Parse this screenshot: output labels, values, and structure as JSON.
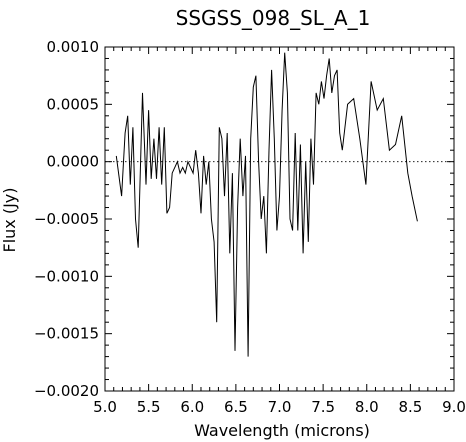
{
  "chart_data": {
    "type": "line",
    "title": "SSGSS_098_SL_A_1",
    "xlabel": "Wavelength (microns)",
    "ylabel": "Flux (Jy)",
    "xlim": [
      5.0,
      9.0
    ],
    "ylim": [
      -0.002,
      0.001
    ],
    "xticks": [
      5.0,
      5.5,
      6.0,
      6.5,
      7.0,
      7.5,
      8.0,
      8.5,
      9.0
    ],
    "xtick_labels": [
      "5.0",
      "5.5",
      "6.0",
      "6.5",
      "7.0",
      "7.5",
      "8.0",
      "8.5",
      "9.0"
    ],
    "yticks": [
      -0.002,
      -0.0015,
      -0.001,
      -0.0005,
      0.0,
      0.0005,
      0.001
    ],
    "ytick_labels": [
      "−0.0020",
      "−0.0015",
      "−0.0010",
      "−0.0005",
      "0.0000",
      "0.0005",
      "0.0010"
    ],
    "reference_line": {
      "y": 0.0,
      "style": "dotted"
    },
    "grid": false,
    "series": [
      {
        "x": [
          5.13,
          5.19,
          5.23,
          5.26,
          5.29,
          5.32,
          5.35,
          5.38,
          5.43,
          5.47,
          5.5,
          5.53,
          5.56,
          5.59,
          5.62,
          5.65,
          5.68,
          5.71,
          5.74,
          5.77,
          5.8,
          5.83,
          5.86,
          5.89,
          5.92,
          5.95,
          5.98,
          6.01,
          6.04,
          6.07,
          6.1,
          6.13,
          6.16,
          6.19,
          6.22,
          6.25,
          6.28,
          6.31,
          6.34,
          6.37,
          6.4,
          6.43,
          6.46,
          6.49,
          6.52,
          6.55,
          6.58,
          6.61,
          6.64,
          6.67,
          6.7,
          6.73,
          6.76,
          6.79,
          6.82,
          6.85,
          6.88,
          6.91,
          6.94,
          6.97,
          7.0,
          7.03,
          7.06,
          7.09,
          7.12,
          7.15,
          7.18,
          7.21,
          7.24,
          7.27,
          7.3,
          7.33,
          7.36,
          7.39,
          7.42,
          7.45,
          7.48,
          7.51,
          7.54,
          7.57,
          7.6,
          7.63,
          7.66,
          7.69,
          7.72,
          7.78,
          7.85,
          7.92,
          7.99,
          8.05,
          8.12,
          8.19,
          8.26,
          8.33,
          8.4,
          8.47,
          8.52,
          8.58
        ],
        "y": [
          5e-05,
          -0.0003,
          0.00025,
          0.0004,
          -0.0002,
          0.0003,
          -0.0005,
          -0.00075,
          0.0006,
          -0.0002,
          0.00045,
          -0.00015,
          0.0002,
          -0.00015,
          0.0003,
          -0.0002,
          0.0003,
          -0.00045,
          -0.0004,
          -0.0001,
          -5e-05,
          0.0,
          -0.0001,
          -5e-05,
          -0.0001,
          0.0,
          -5e-05,
          -0.0001,
          0.0001,
          -0.0001,
          -0.00045,
          5e-05,
          -0.0002,
          0.0,
          -0.0005,
          -0.0007,
          -0.0014,
          0.0003,
          0.0002,
          -0.0003,
          0.00025,
          -0.0008,
          -0.0001,
          -0.00165,
          -0.0004,
          0.0002,
          -0.0003,
          5e-05,
          -0.0017,
          0.0002,
          0.00065,
          0.00075,
          0.0,
          -0.0005,
          -0.0003,
          -0.0008,
          0.0001,
          0.0008,
          0.0002,
          -0.0006,
          -0.0003,
          0.00045,
          0.00095,
          0.0006,
          -0.0005,
          -0.0006,
          0.00025,
          -0.0006,
          0.00015,
          -0.0008,
          0.0,
          -0.0007,
          0.0002,
          -0.0002,
          0.0006,
          0.0005,
          0.0007,
          0.00055,
          0.00075,
          0.0009,
          0.0006,
          0.00075,
          0.0008,
          0.00025,
          0.0001,
          0.0005,
          0.00055,
          0.0002,
          -0.0002,
          0.0007,
          0.00045,
          0.00055,
          0.0001,
          0.00015,
          0.0004,
          -0.0001,
          -0.0003,
          -0.00052
        ]
      }
    ]
  }
}
